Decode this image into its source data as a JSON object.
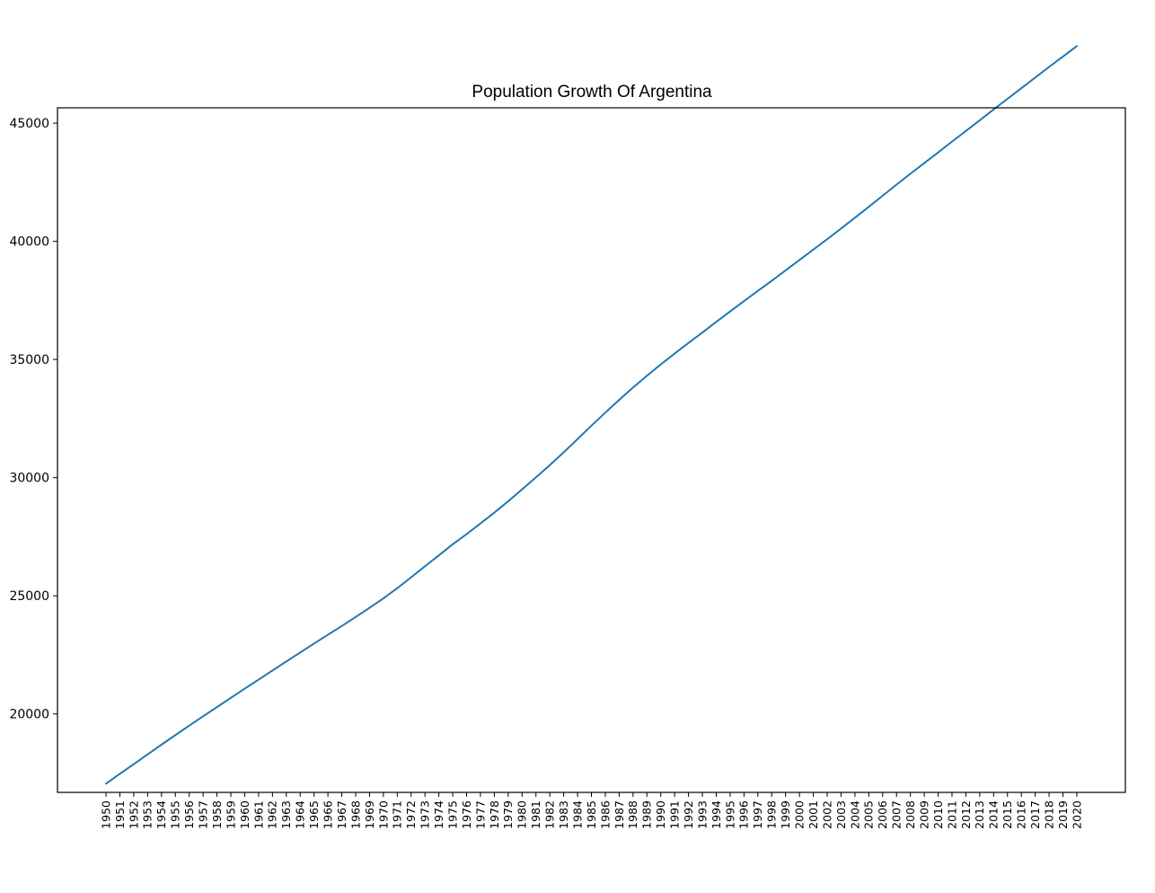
{
  "chart_data": {
    "type": "line",
    "title": "Population Growth Of Argentina",
    "xlabel": "",
    "ylabel": "",
    "x": [
      1950,
      1951,
      1952,
      1953,
      1954,
      1955,
      1956,
      1957,
      1958,
      1959,
      1960,
      1961,
      1962,
      1963,
      1964,
      1965,
      1966,
      1967,
      1968,
      1969,
      1970,
      1971,
      1972,
      1973,
      1974,
      1975,
      1976,
      1977,
      1978,
      1979,
      1980,
      1981,
      1982,
      1983,
      1984,
      1985,
      1986,
      1987,
      1988,
      1989,
      1990,
      1991,
      1992,
      1993,
      1994,
      1995,
      1996,
      1997,
      1998,
      1999,
      2000,
      2001,
      2002,
      2003,
      2004,
      2005,
      2006,
      2007,
      2008,
      2009,
      2010,
      2011,
      2012,
      2013,
      2014,
      2015,
      2016,
      2017,
      2018,
      2019,
      2020
    ],
    "series": [
      {
        "values": [
          17050,
          17467,
          17877,
          18290,
          18700,
          19104,
          19505,
          19900,
          20290,
          20680,
          21070,
          21450,
          21840,
          22220,
          22600,
          22980,
          23350,
          23720,
          24100,
          24490,
          24890,
          25320,
          25780,
          26250,
          26710,
          27180,
          27610,
          28060,
          28520,
          29000,
          29500,
          30010,
          30530,
          31070,
          31630,
          32200,
          32750,
          33290,
          33810,
          34310,
          34790,
          35250,
          35700,
          36140,
          36590,
          37030,
          37470,
          37900,
          38330,
          38770,
          39210,
          39650,
          40090,
          40540,
          41000,
          41460,
          41930,
          42400,
          42860,
          43310,
          43760,
          44220,
          44670,
          45120,
          45580,
          46030,
          46480,
          46930,
          47380,
          47820,
          48260
        ],
        "color": "#1f77b4"
      }
    ],
    "yticks": [
      20000,
      25000,
      30000,
      35000,
      40000,
      45000
    ],
    "ylim": [
      16680,
      45650
    ],
    "xlim": [
      1946.5,
      2023.5
    ],
    "grid": false,
    "legend": "none"
  }
}
